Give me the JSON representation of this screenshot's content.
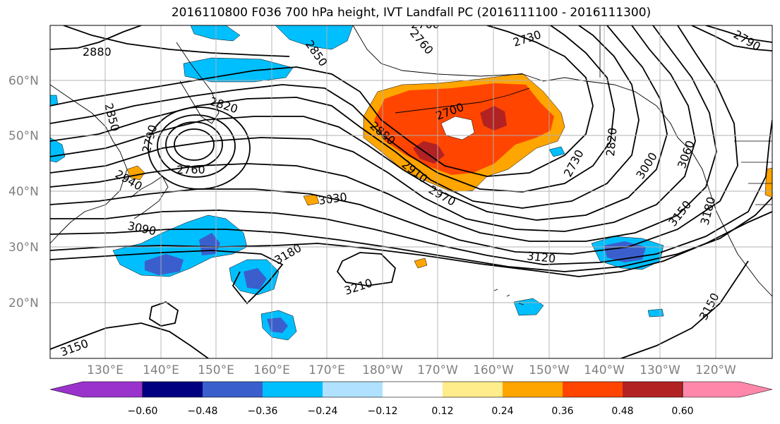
{
  "title": "2016110800 F036 700 hPa height, IVT Landfall PC (2016111100 - 2016111300)",
  "map": {
    "lat_labels": [
      "60°N",
      "50°N",
      "40°N",
      "30°N",
      "20°N"
    ],
    "lon_labels": [
      "130°E",
      "140°E",
      "150°E",
      "160°E",
      "170°E",
      "180°W",
      "170°W",
      "160°W",
      "150°W",
      "140°W",
      "130°W",
      "120°W"
    ],
    "contour_labels": [
      "2880",
      "2850",
      "2760",
      "2850",
      "2820",
      "2790",
      "2760",
      "2940",
      "3090",
      "3030",
      "2880",
      "2700",
      "2910",
      "2970",
      "2730",
      "2730",
      "2820",
      "3000",
      "3060",
      "3150",
      "3180",
      "3120",
      "3180",
      "3210",
      "3150",
      "3150",
      "2760",
      "2790"
    ],
    "colors": {
      "fill_colors": [
        "#9933cc",
        "#000080",
        "#3a5fcd",
        "#00bfff",
        "#b0e2ff",
        "#ffffff",
        "#ffec8b",
        "#ffa500",
        "#ff4500",
        "#b22222",
        "#ff88aa"
      ],
      "gridline": "#b0b0b0",
      "contour": "#000000"
    }
  },
  "colorbar": {
    "ticks": [
      "−0.60",
      "−0.48",
      "−0.36",
      "−0.24",
      "−0.12",
      "0.12",
      "0.24",
      "0.36",
      "0.48",
      "0.60"
    ]
  }
}
